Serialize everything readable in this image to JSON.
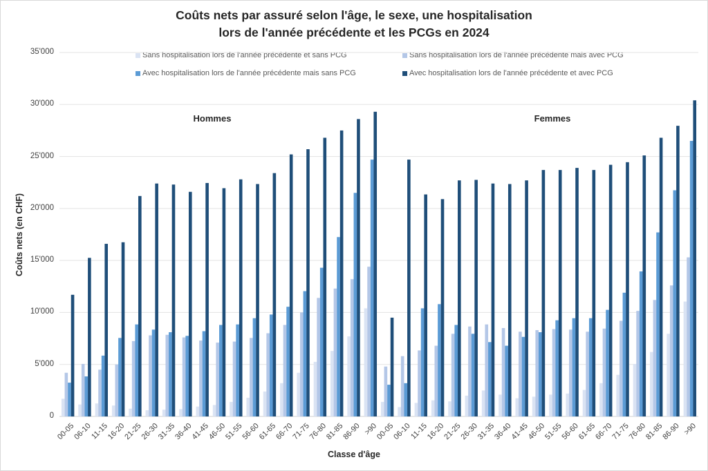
{
  "chart_data": {
    "type": "bar",
    "title": "Coûts nets par assuré selon l'âge, le sexe, une hospitalisation lors de l'année précédente et les PCGs en 2024",
    "title_lines": [
      "Coûts nets par assuré selon l'âge, le sexe, une hospitalisation",
      "lors de l'année précédente et les PCGs en 2024"
    ],
    "xlabel": "Classe d'âge",
    "ylabel": "Coûts nets (en CHF)",
    "ylim": [
      0,
      35000
    ],
    "yticks": [
      0,
      5000,
      10000,
      15000,
      20000,
      25000,
      30000,
      35000
    ],
    "ytick_labels": [
      "0",
      "5'000",
      "10'000",
      "15'000",
      "20'000",
      "25'000",
      "30'000",
      "35'000"
    ],
    "grid": true,
    "legend_position": "top",
    "groups": [
      {
        "label": "Hommes",
        "categories": [
          "00-05",
          "06-10",
          "11-15",
          "16-20",
          "21-25",
          "26-30",
          "31-35",
          "36-40",
          "41-45",
          "46-50",
          "51-55",
          "56-60",
          "61-65",
          "66-70",
          "71-75",
          "76-80",
          "81-85",
          "86-90",
          ">90"
        ]
      },
      {
        "label": "Femmes",
        "categories": [
          "00-05",
          "06-10",
          "11-15",
          "16-20",
          "21-25",
          "26-30",
          "31-35",
          "36-40",
          "41-45",
          "46-50",
          "51-55",
          "56-60",
          "61-65",
          "66-70",
          "71-75",
          "76-80",
          "81-85",
          "86-90",
          ">90"
        ]
      }
    ],
    "series": [
      {
        "name": "Sans hospitalisation lors de l'année précédente et sans PCG",
        "color": "#dae3f3",
        "values": {
          "Hommes": [
            1700,
            1150,
            1250,
            1050,
            750,
            600,
            650,
            700,
            950,
            1100,
            1400,
            1800,
            2400,
            3200,
            4200,
            5250,
            6300,
            7700,
            10400
          ],
          "Femmes": [
            1400,
            900,
            1300,
            1550,
            1450,
            2000,
            2500,
            2100,
            1750,
            1900,
            2100,
            2200,
            2550,
            3200,
            4000,
            5050,
            6200,
            7950,
            11050
          ]
        }
      },
      {
        "name": "Sans hospitalisation lors de l'année précédente mais avec PCG",
        "color": "#b4c7e7",
        "values": {
          "Hommes": [
            4200,
            5050,
            4500,
            5000,
            7250,
            7800,
            7850,
            7600,
            7300,
            7100,
            7200,
            7550,
            8000,
            8800,
            10000,
            11400,
            12300,
            13200,
            14400
          ],
          "Femmes": [
            4800,
            5800,
            6350,
            6800,
            7950,
            8650,
            8850,
            8500,
            8150,
            8300,
            8400,
            8350,
            8150,
            8450,
            9200,
            10150,
            11200,
            12600,
            15300
          ]
        }
      },
      {
        "name": "Avec hospitalisation lors de l'année précédente mais sans PCG",
        "color": "#5b9bd5",
        "values": {
          "Hommes": [
            3250,
            3850,
            5850,
            7550,
            8850,
            8350,
            8100,
            7750,
            8200,
            8800,
            8850,
            9450,
            9800,
            10550,
            12050,
            14300,
            17250,
            21500,
            24700
          ],
          "Femmes": [
            3050,
            3200,
            10400,
            10800,
            8800,
            7950,
            7150,
            6800,
            7650,
            8100,
            9250,
            9450,
            9450,
            10250,
            11900,
            13950,
            17700,
            21750,
            26500
          ]
        }
      },
      {
        "name": "Avec hospitalisation lors de l'année précédente et avec PCG",
        "color": "#1f4e79",
        "values": {
          "Hommes": [
            11700,
            15250,
            16600,
            16750,
            21200,
            22400,
            22300,
            21600,
            22450,
            21950,
            22800,
            22350,
            23400,
            25200,
            25700,
            26800,
            27500,
            28600,
            29300
          ],
          "Femmes": [
            9500,
            24700,
            21350,
            20900,
            22700,
            22750,
            22400,
            22350,
            22700,
            23700,
            23700,
            23900,
            23700,
            24200,
            24450,
            25100,
            26800,
            27950,
            30400
          ]
        }
      }
    ]
  }
}
